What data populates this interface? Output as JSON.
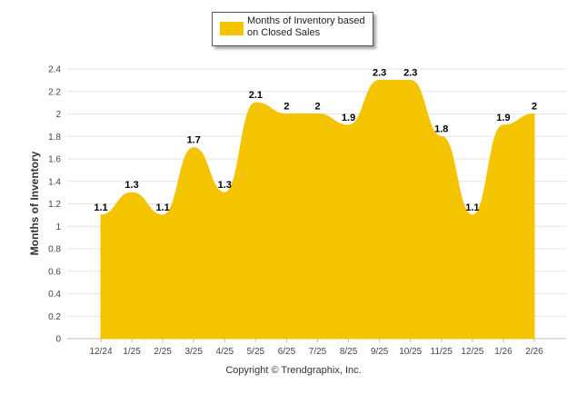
{
  "legend": {
    "label": "Months of Inventory based on Closed Sales"
  },
  "footer": {
    "copyright": "Copyright © Trendgraphix, Inc."
  },
  "colors": {
    "fill": "#F5C400",
    "grid": "#e4e4e4",
    "axis_text": "#444444"
  },
  "chart_data": {
    "type": "area",
    "title": "",
    "xlabel": "",
    "ylabel": "Months of Inventory",
    "categories": [
      "12/24",
      "1/25",
      "2/25",
      "3/25",
      "4/25",
      "5/25",
      "6/25",
      "7/25",
      "8/25",
      "9/25",
      "10/25",
      "11/25",
      "12/25",
      "1/26",
      "2/26"
    ],
    "series": [
      {
        "name": "Months of Inventory based on Closed Sales",
        "values": [
          1.1,
          1.3,
          1.1,
          1.7,
          1.3,
          2.1,
          2,
          2,
          1.9,
          2.3,
          2.3,
          1.8,
          1.1,
          1.9,
          2
        ]
      }
    ],
    "data_labels": [
      "1.1",
      "1.3",
      "1.1",
      "1.7",
      "1.3",
      "2.1",
      "2",
      "2",
      "1.9",
      "2.3",
      "2.3",
      "1.8",
      "1.1",
      "1.9",
      "2"
    ],
    "yticks": [
      "0",
      "0.2",
      "0.4",
      "0.6",
      "0.8",
      "1",
      "1.2",
      "1.4",
      "1.6",
      "1.8",
      "2",
      "2.2",
      "2.4"
    ],
    "ylim": [
      0,
      2.4
    ],
    "grid": true,
    "legend_position": "top"
  }
}
